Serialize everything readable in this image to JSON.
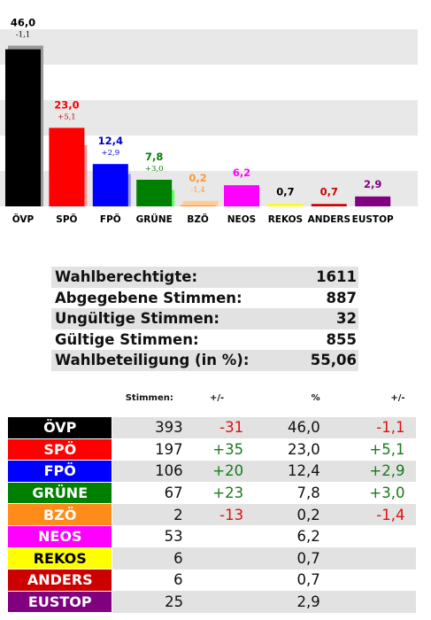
{
  "chart_data": {
    "type": "bar",
    "categories": [
      "ÖVP",
      "SPÖ",
      "FPÖ",
      "GRÜNE",
      "BZÖ",
      "NEOS",
      "REKOS",
      "ANDERS",
      "EUSTOP"
    ],
    "values": [
      46.0,
      23.0,
      12.4,
      7.8,
      0.2,
      6.2,
      0.7,
      0.7,
      2.9
    ],
    "value_labels": [
      "46,0",
      "23,0",
      "12,4",
      "7,8",
      "0,2",
      "6,2",
      "0,7",
      "0,7",
      "2,9"
    ],
    "changes": [
      -1.1,
      5.1,
      2.9,
      3.0,
      -1.4,
      null,
      null,
      null,
      null
    ],
    "change_labels": [
      "-1,1",
      "+5,1",
      "+2,9",
      "+3,0",
      "-1,4",
      "",
      "",
      "",
      ""
    ],
    "colors": [
      "#000000",
      "#ff0000",
      "#0000ff",
      "#008000",
      "#ff9933",
      "#ff00ff",
      "#ffff00",
      "#cc0000",
      "#800080"
    ],
    "label_colors": [
      "#000000",
      "#ff0000",
      "#0000cc",
      "#008000",
      "#ff9933",
      "#ff00ff",
      "#000000",
      "#cc0000",
      "#800080"
    ],
    "change_label_colors": [
      "#000000",
      "#cc0000",
      "#0000cc",
      "#008000",
      "#ff9933",
      "",
      "",
      "",
      ""
    ],
    "prev_values": [
      47.1,
      17.9,
      9.5,
      4.8,
      1.6,
      null,
      null,
      null,
      null
    ],
    "prev_colors": [
      "#999999",
      "#ff9999",
      "#9999ff",
      "#66ff66",
      "#ffcc99",
      null,
      null,
      null,
      null
    ],
    "ylim": [
      0,
      48
    ],
    "grid": true,
    "grid_band_color": "#e8e8e8"
  },
  "stats": [
    {
      "label": "Wahlberechtigte:",
      "value": "1611"
    },
    {
      "label": "Abgegebene Stimmen:",
      "value": "887"
    },
    {
      "label": "Ungültige Stimmen:",
      "value": "32"
    },
    {
      "label": "Gültige Stimmen:",
      "value": "855"
    },
    {
      "label": "Wahlbeteiligung (in %):",
      "value": "55,06"
    }
  ],
  "results": {
    "headers": {
      "votes": "Stimmen:",
      "diff": "+/-",
      "pct": "%",
      "pct_diff": "+/-"
    },
    "rows": [
      {
        "party": "ÖVP",
        "color": "#000000",
        "votes": "393",
        "diff": "-31",
        "pct": "46,0",
        "pct_diff": "-1,1"
      },
      {
        "party": "SPÖ",
        "color": "#ff0000",
        "votes": "197",
        "diff": "+35",
        "pct": "23,0",
        "pct_diff": "+5,1"
      },
      {
        "party": "FPÖ",
        "color": "#0000ff",
        "votes": "106",
        "diff": "+20",
        "pct": "12,4",
        "pct_diff": "+2,9"
      },
      {
        "party": "GRÜNE",
        "color": "#008000",
        "votes": "67",
        "diff": "+23",
        "pct": "7,8",
        "pct_diff": "+3,0"
      },
      {
        "party": "BZÖ",
        "color": "#ff8c1a",
        "votes": "2",
        "diff": "-13",
        "pct": "0,2",
        "pct_diff": "-1,4"
      },
      {
        "party": "NEOS",
        "color": "#ff00ff",
        "votes": "53",
        "diff": "",
        "pct": "6,2",
        "pct_diff": ""
      },
      {
        "party": "REKOS",
        "color": "#ffff00",
        "votes": "6",
        "diff": "",
        "pct": "0,7",
        "pct_diff": ""
      },
      {
        "party": "ANDERS",
        "color": "#cc0000",
        "votes": "6",
        "diff": "",
        "pct": "0,7",
        "pct_diff": ""
      },
      {
        "party": "EUSTOP",
        "color": "#800080",
        "votes": "25",
        "diff": "",
        "pct": "2,9",
        "pct_diff": ""
      }
    ]
  }
}
